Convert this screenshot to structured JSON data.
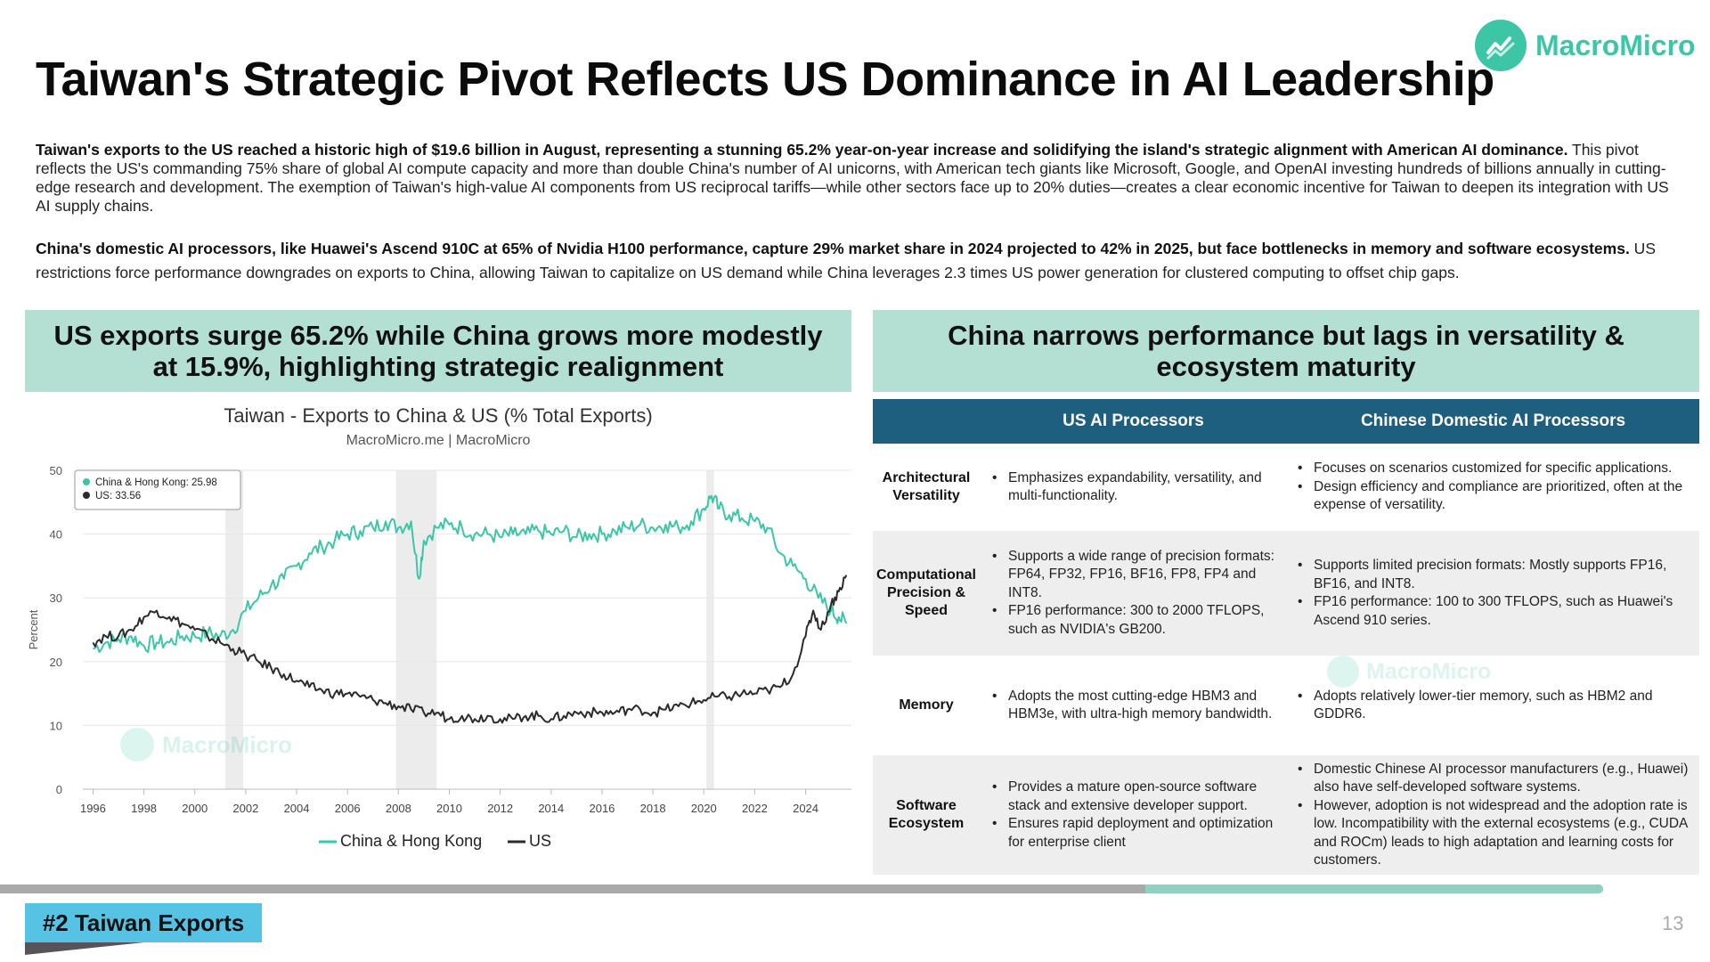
{
  "brand": {
    "name": "MacroMicro",
    "accent": "#3cc6a6"
  },
  "title": "Taiwan's Strategic Pivot Reflects US Dominance in AI Leadership",
  "para1": {
    "bold": "Taiwan's exports to the US reached a historic high of $19.6 billion in August, representing a stunning 65.2% year-on-year increase and solidifying the island's strategic alignment with American AI dominance.",
    "rest": " This pivot reflects the US's commanding 75% share of global AI compute capacity and more than double China's number of AI unicorns, with American tech giants like Microsoft, Google, and OpenAI investing hundreds of billions annually in cutting-edge research and development. The exemption of Taiwan's high-value AI components from US reciprocal tariffs—while other sectors face up to 20% duties—creates a clear economic incentive for Taiwan to deepen its integration with US AI supply chains."
  },
  "para2": {
    "bold": "China's domestic AI processors, like Huawei's Ascend 910C at 65% of Nvidia H100 performance, capture 29% market share in 2024 projected to 42% in 2025, but face bottlenecks in memory and software ecosystems.",
    "rest": " US restrictions force performance downgrades on exports to China, allowing Taiwan to capitalize on US demand while China leverages 2.3 times US power generation for clustered computing to offset chip gaps."
  },
  "left_banner": "US exports surge 65.2% while China grows more modestly at 15.9%, highlighting strategic realignment",
  "right_banner": "China narrows performance but lags in versatility & ecosystem maturity",
  "chart_data": {
    "type": "line",
    "title": "Taiwan - Exports to China & US (% Total Exports)",
    "subtitle": "MacroMicro.me | MacroMicro",
    "ylabel": "Percent",
    "xlabel": "",
    "xlim": [
      1995.6,
      2025.8
    ],
    "ylim": [
      0,
      50
    ],
    "yticks": [
      0,
      10,
      20,
      30,
      40,
      50
    ],
    "xticks": [
      1996,
      1998,
      2000,
      2002,
      2004,
      2006,
      2008,
      2010,
      2012,
      2014,
      2016,
      2018,
      2020,
      2022,
      2024
    ],
    "shaded_periods": [
      [
        2001.2,
        2001.9
      ],
      [
        2007.9,
        2009.5
      ],
      [
        2020.1,
        2020.4
      ]
    ],
    "tooltip": {
      "lines": [
        "China & Hong Kong: 25.98",
        "US: 33.56"
      ]
    },
    "legend_position": "bottom",
    "series": [
      {
        "name": "China & Hong Kong",
        "color": "#3cc6a6",
        "x": [
          1996,
          1996.5,
          1997,
          1997.5,
          1998,
          1998.5,
          1999,
          1999.5,
          2000,
          2000.5,
          2001,
          2001.5,
          2002,
          2002.5,
          2003,
          2003.5,
          2004,
          2004.5,
          2005,
          2005.5,
          2006,
          2006.5,
          2007,
          2007.5,
          2008,
          2008.5,
          2008.8,
          2009,
          2009.5,
          2010,
          2010.5,
          2011,
          2011.5,
          2012,
          2012.5,
          2013,
          2013.5,
          2014,
          2014.5,
          2015,
          2015.5,
          2016,
          2016.5,
          2017,
          2017.5,
          2018,
          2018.5,
          2019,
          2019.5,
          2020,
          2020.3,
          2020.6,
          2021,
          2021.5,
          2022,
          2022.5,
          2023,
          2023.5,
          2024,
          2024.5,
          2025,
          2025.3,
          2025.6
        ],
        "values": [
          22,
          23,
          23.5,
          24,
          22.5,
          23,
          23,
          24,
          24,
          24.5,
          24,
          25,
          28,
          30,
          32,
          33,
          35,
          37,
          38,
          39,
          40,
          40.5,
          41,
          42,
          41,
          42,
          33,
          39,
          41,
          41.5,
          41,
          40,
          40,
          39.5,
          40,
          40,
          40.5,
          40,
          40.5,
          39.5,
          40,
          40,
          40.5,
          41,
          41.5,
          41,
          41.5,
          41,
          42,
          44,
          46,
          44,
          43,
          42.5,
          42,
          41,
          37,
          35,
          33,
          30,
          28,
          27,
          25.98
        ]
      },
      {
        "name": "US",
        "color": "#2b2b2b",
        "x": [
          1996,
          1996.5,
          1997,
          1997.5,
          1998,
          1998.5,
          1999,
          1999.5,
          2000,
          2000.5,
          2001,
          2001.5,
          2002,
          2002.5,
          2003,
          2003.5,
          2004,
          2004.5,
          2005,
          2005.5,
          2006,
          2006.5,
          2007,
          2007.5,
          2008,
          2008.5,
          2009,
          2009.5,
          2010,
          2010.5,
          2011,
          2011.5,
          2012,
          2012.5,
          2013,
          2013.5,
          2014,
          2014.5,
          2015,
          2015.5,
          2016,
          2016.5,
          2017,
          2017.5,
          2018,
          2018.5,
          2019,
          2019.5,
          2020,
          2020.5,
          2021,
          2021.5,
          2022,
          2022.5,
          2023,
          2023.5,
          2024,
          2024.3,
          2024.6,
          2025,
          2025.3,
          2025.6
        ],
        "values": [
          23,
          24,
          24,
          25,
          27,
          28,
          27,
          26,
          25,
          24,
          23,
          22,
          21,
          20,
          19,
          18,
          17,
          16,
          15.5,
          15,
          15,
          14.5,
          14,
          13.5,
          13,
          12.5,
          12,
          12,
          11,
          11.5,
          11,
          11.5,
          11,
          11,
          11.5,
          11.5,
          11,
          11.5,
          12,
          12,
          12,
          12,
          12.5,
          12.5,
          12,
          12.5,
          13,
          13.5,
          14,
          14.5,
          14.5,
          15,
          15,
          15.5,
          16,
          18,
          24,
          28,
          25,
          29,
          31,
          33.56
        ]
      }
    ]
  },
  "table": {
    "headers": [
      "US AI Processors",
      "Chinese Domestic AI Processors"
    ],
    "rows": [
      {
        "label": "Architectural Versatility",
        "us": [
          "Emphasizes expandability, versatility, and multi-functionality."
        ],
        "cn": [
          "Focuses on scenarios customized for specific applications.",
          "Design efficiency and compliance are prioritized, often at the expense of versatility."
        ]
      },
      {
        "label": "Computational Precision & Speed",
        "us": [
          "Supports a wide range of precision formats: FP64, FP32, FP16, BF16, FP8, FP4 and INT8.",
          "FP16 performance: 300 to 2000 TFLOPS, such as NVIDIA's GB200."
        ],
        "cn": [
          "Supports limited precision formats: Mostly supports FP16, BF16, and INT8.",
          "FP16 performance: 100 to 300 TFLOPS, such as Huawei's Ascend 910 series."
        ]
      },
      {
        "label": "Memory",
        "us": [
          "Adopts the most cutting-edge HBM3 and HBM3e, with ultra-high memory bandwidth."
        ],
        "cn": [
          "Adopts relatively lower-tier memory, such as HBM2 and GDDR6."
        ]
      },
      {
        "label": "Software Ecosystem",
        "us": [
          "Provides a mature open-source software stack and extensive developer support.",
          "Ensures rapid deployment and optimization for enterprise client"
        ],
        "cn": [
          "Domestic Chinese AI processor manufacturers (e.g., Huawei) also have self-developed software systems.",
          "However, adoption is not widespread and the adoption rate is low. Incompatibility with the external ecosystems (e.g., CUDA and ROCm) leads to high adaptation and learning costs for customers."
        ]
      }
    ]
  },
  "footer": {
    "tag": "#2 Taiwan Exports",
    "page": "13",
    "progress": 0.715
  }
}
